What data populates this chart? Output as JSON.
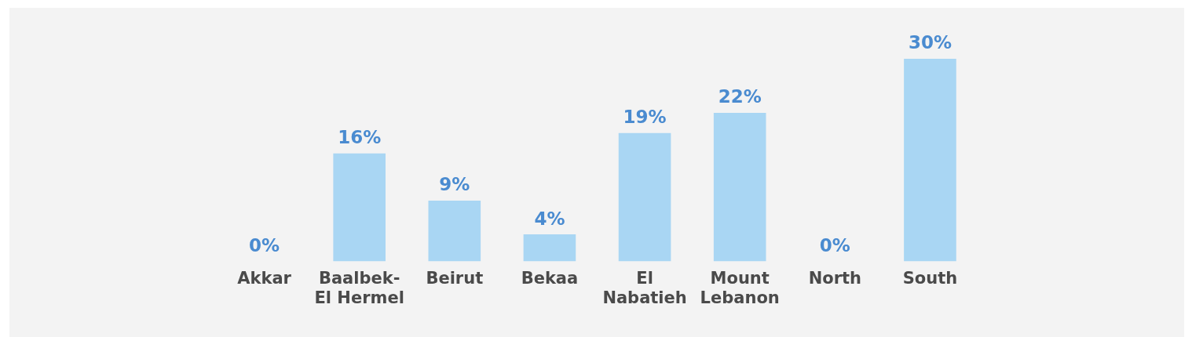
{
  "chart_data": {
    "type": "bar",
    "categories": [
      "Akkar",
      "Baalbek-\nEl Hermel",
      "Beirut",
      "Bekaa",
      "El\nNabatieh",
      "Mount\nLebanon",
      "North",
      "South"
    ],
    "values": [
      0,
      16,
      9,
      4,
      19,
      22,
      0,
      30
    ],
    "color": "#a9d6f3",
    "value_labels": [
      "0%",
      "16%",
      "9%",
      "4%",
      "19%",
      "22%",
      "0%",
      "30%"
    ],
    "grid": false,
    "legend": false,
    "tick_labels": "x"
  }
}
